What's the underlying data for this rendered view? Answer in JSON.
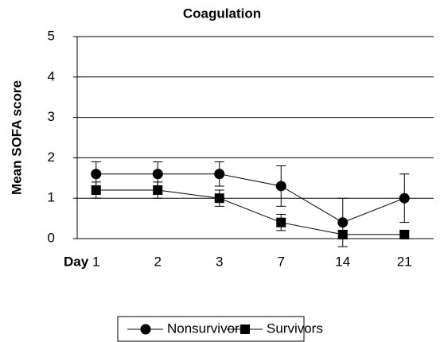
{
  "chart_data": {
    "type": "line",
    "title": "Coagulation",
    "y_label": "Mean SOFA score",
    "x_label": "Day",
    "categories": [
      "1",
      "2",
      "3",
      "7",
      "14",
      "21"
    ],
    "series": [
      {
        "name": "Nonsurvivors",
        "color": "#000000",
        "marker": "circle",
        "values": [
          1.6,
          1.6,
          1.6,
          1.3,
          0.4,
          1.0
        ],
        "errors": [
          0.3,
          0.3,
          0.3,
          0.5,
          0.6,
          0.6
        ]
      },
      {
        "name": "Survivors",
        "color": "#000000",
        "marker": "square",
        "values": [
          1.2,
          1.2,
          1.0,
          0.4,
          0.1,
          0.1
        ],
        "errors": [
          0.2,
          0.2,
          0.2,
          0.2,
          0.1,
          0.1
        ]
      }
    ],
    "ylim": [
      0,
      5
    ],
    "yticks": [
      0,
      1,
      2,
      3,
      4,
      5
    ],
    "grid": true,
    "legend": "bottom"
  }
}
